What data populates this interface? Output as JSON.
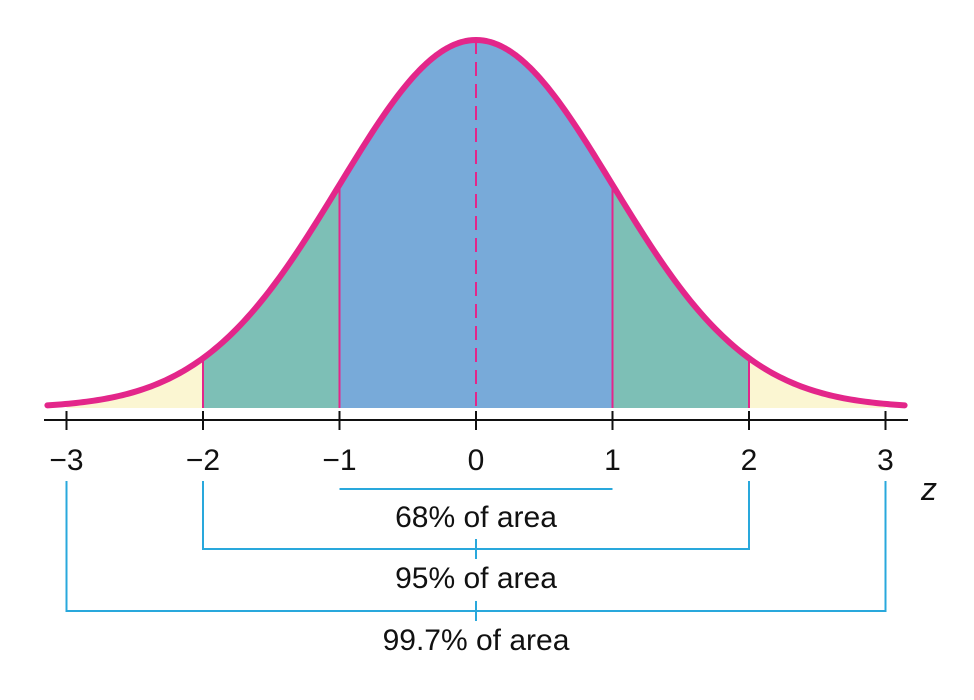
{
  "chart_data": {
    "type": "area",
    "distribution": "standard normal",
    "x_range": [
      -3,
      3
    ],
    "xlabel": "z",
    "ticks": [
      {
        "value": -3,
        "label": "−3"
      },
      {
        "value": -2,
        "label": "−2"
      },
      {
        "value": -1,
        "label": "−1"
      },
      {
        "value": 0,
        "label": "0"
      },
      {
        "value": 1,
        "label": "1"
      },
      {
        "value": 2,
        "label": "2"
      },
      {
        "value": 3,
        "label": "3"
      }
    ],
    "regions": [
      {
        "from": -3,
        "to": -2,
        "color": "#fbf6d2"
      },
      {
        "from": -2,
        "to": -1,
        "color": "#7dbfb6"
      },
      {
        "from": -1,
        "to": 1,
        "color": "#78aad9"
      },
      {
        "from": 1,
        "to": 2,
        "color": "#7dbfb6"
      },
      {
        "from": 2,
        "to": 3,
        "color": "#fbf6d2"
      }
    ],
    "brackets": [
      {
        "from": -1,
        "to": 1,
        "label": "68% of area",
        "percent": 68
      },
      {
        "from": -2,
        "to": 2,
        "label": "95% of area",
        "percent": 95
      },
      {
        "from": -3,
        "to": 3,
        "label": "99.7% of area",
        "percent": 99.7
      }
    ],
    "curve_color": "#e3268a",
    "bracket_color": "#29a8dc",
    "grid": false
  }
}
